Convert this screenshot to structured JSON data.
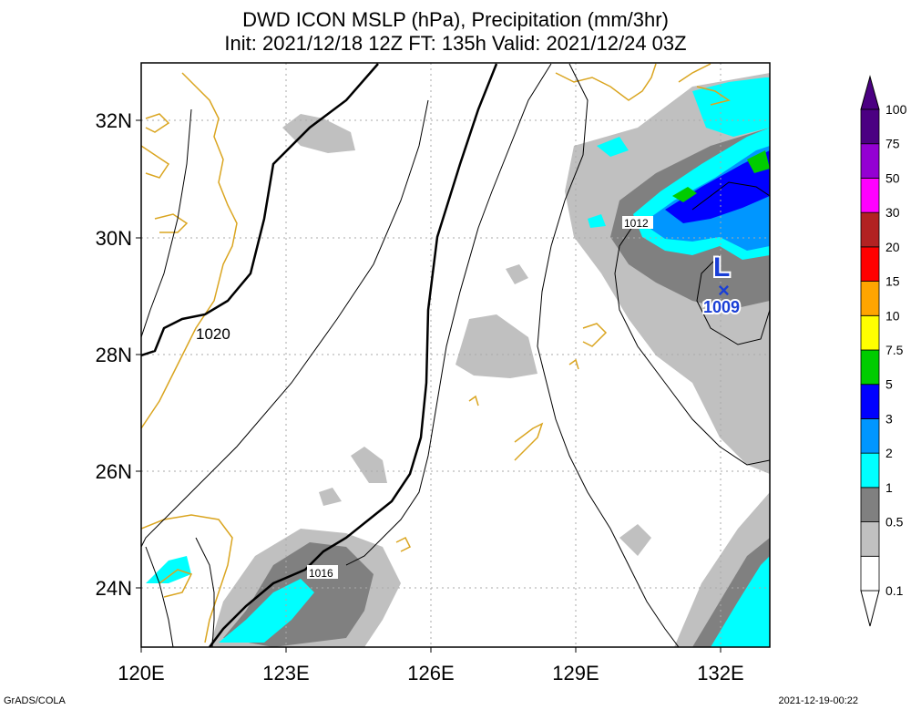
{
  "title": {
    "line1": "DWD ICON MSLP (hPa), Precipitation (mm/3hr)",
    "line2": "Init: 2021/12/18 12Z  FT: 135h  Valid: 2021/12/24 03Z"
  },
  "axes": {
    "lon_labels": [
      "120E",
      "123E",
      "126E",
      "129E",
      "132E"
    ],
    "lon_values": [
      120,
      123,
      126,
      129,
      132
    ],
    "lat_labels": [
      "32N",
      "30N",
      "28N",
      "26N",
      "24N"
    ],
    "lat_values": [
      32,
      30,
      28,
      26,
      24
    ],
    "lon_range": [
      120,
      133
    ],
    "lat_range": [
      23,
      33
    ]
  },
  "isobar_labels": [
    "1020",
    "1016",
    "1012"
  ],
  "low_center": {
    "symbol": "L",
    "marker": "×",
    "pressure": "1009",
    "lon": 131.9,
    "lat": 29.1
  },
  "legend": {
    "levels": [
      "0.1",
      "0.5",
      "1",
      "2",
      "3",
      "5",
      "7.5",
      "10",
      "15",
      "20",
      "30",
      "50",
      "75",
      "100"
    ],
    "colors": [
      "#ffffff",
      "#c0c0c0",
      "#808080",
      "#00ffff",
      "#0096ff",
      "#0000ff",
      "#00cc00",
      "#ffff00",
      "#ffa500",
      "#ff0000",
      "#b22222",
      "#ff00ff",
      "#9400d3",
      "#4b0082"
    ]
  },
  "colors": {
    "coastline": "#daa520",
    "grid": "#aaaaaa",
    "low_symbol": "#1a3fd6"
  },
  "footer": {
    "left": "GrADS/COLA",
    "right": "2021-12-19-00:22"
  }
}
